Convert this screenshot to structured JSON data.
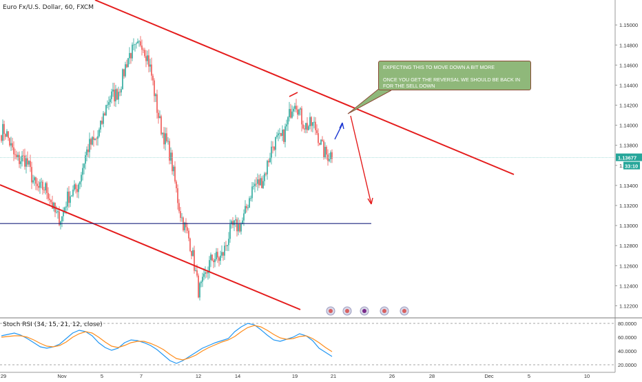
{
  "header": {
    "symbol_title": "Euro Fx/U.S. Dollar, 60, FXCM"
  },
  "note": {
    "line1": "EXPECTING THIS TO MOVE DOWN A BIT MORE",
    "line2": "ONCE YOU GET THE REVERSAL WE SHOULD BE BACK IN FOR THE SELL DOWN"
  },
  "indicator": {
    "title": "Stoch RSI (34, 15, 21, 12, close)"
  },
  "current": {
    "price": "1.13677",
    "countdown": "33:10"
  },
  "colors": {
    "up_candle": "#26a69a",
    "down_candle": "#ef5350",
    "trendline": "#e41c1c",
    "support_line": "#1a237e",
    "stoch_k": "#2196f3",
    "stoch_d": "#ff8c1a",
    "price_badge": "#26a69a"
  },
  "chart_data": [
    {
      "type": "candlestick",
      "title": "Euro Fx/U.S. Dollar, 60, FXCM",
      "y_ticks": [
        "1.15000",
        "1.14800",
        "1.14600",
        "1.14400",
        "1.14200",
        "1.14000",
        "1.13800",
        "1.13600",
        "1.13400",
        "1.13200",
        "1.13000",
        "1.12800",
        "1.12600",
        "1.12400",
        "1.12200"
      ],
      "ylim": [
        1.121,
        1.1518
      ],
      "x_ticks": [
        "29",
        "Nov",
        "5",
        "7",
        "12",
        "14",
        "19",
        "21",
        "26",
        "28",
        "Dec",
        "5",
        "10"
      ],
      "anchors": [
        {
          "day": "29",
          "close": 1.139
        },
        {
          "day": "Nov",
          "close": 1.1308
        },
        {
          "day": "5",
          "close": 1.1405
        },
        {
          "day": "7",
          "close": 1.149
        },
        {
          "day": "12",
          "close": 1.124
        },
        {
          "day": "14",
          "close": 1.13
        },
        {
          "day": "19",
          "close": 1.142
        },
        {
          "day": "21",
          "close": 1.1366
        }
      ],
      "current_price": 1.13677,
      "support_level": 1.1302,
      "grid": false,
      "annotations": [
        {
          "kind": "trendline",
          "label": "upper channel",
          "from": {
            "day": "29",
            "price": 1.1528
          },
          "to": {
            "day": "5",
            "price": 1.134
          }
        },
        {
          "kind": "trendline",
          "label": "lower channel",
          "from": {
            "day": "29",
            "price": 1.1336
          },
          "to": {
            "day": "21",
            "price": 1.1224
          }
        },
        {
          "kind": "horizontal",
          "label": "support",
          "price": 1.1302
        },
        {
          "kind": "arrow",
          "color": "blue",
          "direction": "up"
        },
        {
          "kind": "arrow",
          "color": "red",
          "direction": "down",
          "target_price": 1.1318
        }
      ]
    },
    {
      "type": "line",
      "title": "Stoch RSI (34, 15, 21, 12, close)",
      "y_ticks": [
        "80.0000",
        "60.0000",
        "40.0000",
        "20.0000"
      ],
      "ylim": [
        16,
        86
      ],
      "series": [
        {
          "name": "K",
          "values": [
            62,
            64,
            66,
            63,
            58,
            52,
            46,
            44,
            46,
            50,
            58,
            66,
            70,
            68,
            62,
            52,
            45,
            41,
            44,
            52,
            56,
            55,
            52,
            48,
            42,
            34,
            26,
            22,
            26,
            32,
            38,
            44,
            48,
            52,
            55,
            58,
            68,
            75,
            80,
            78,
            71,
            63,
            56,
            54,
            57,
            60,
            65,
            62,
            55,
            44,
            38,
            32
          ]
        },
        {
          "name": "D",
          "values": [
            60,
            61,
            62,
            62,
            60,
            56,
            51,
            47,
            46,
            48,
            53,
            60,
            65,
            68,
            66,
            60,
            53,
            47,
            45,
            48,
            52,
            54,
            54,
            51,
            47,
            42,
            35,
            29,
            27,
            30,
            34,
            40,
            45,
            49,
            53,
            56,
            61,
            68,
            74,
            77,
            75,
            70,
            64,
            59,
            57,
            58,
            61,
            62,
            58,
            52,
            45,
            39
          ]
        }
      ],
      "levels": [
        80,
        20
      ]
    }
  ]
}
